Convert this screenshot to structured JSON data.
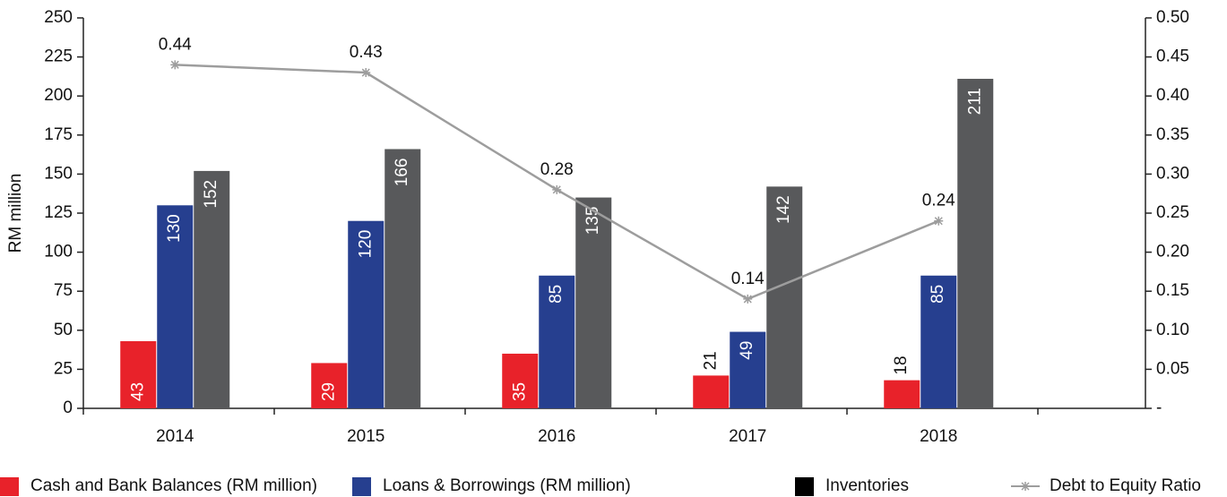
{
  "chart_data": {
    "type": "bar_line",
    "y_label": "RM million",
    "categories": [
      "2014",
      "2015",
      "2016",
      "2017",
      "2018"
    ],
    "series": [
      {
        "name": "Cash and Bank Balances (RM million)",
        "color": "#e8222a",
        "values": [
          43,
          29,
          35,
          21,
          18
        ]
      },
      {
        "name": "Loans & Borrowings (RM million)",
        "color": "#263f8f",
        "values": [
          130,
          120,
          85,
          49,
          85
        ]
      },
      {
        "name": "Inventories",
        "color": "#58595b",
        "legend_color": "#000000",
        "values": [
          152,
          166,
          135,
          142,
          211
        ]
      },
      {
        "name": "Debt to Equity Ratio",
        "color": "#9d9d9d",
        "axis": "y2",
        "values": [
          0.44,
          0.43,
          0.28,
          0.14,
          0.24
        ]
      }
    ],
    "ylim": [
      0,
      250
    ],
    "yticks": [
      0,
      25,
      50,
      75,
      100,
      125,
      150,
      175,
      200,
      225,
      250
    ],
    "y2lim": [
      0,
      0.5
    ],
    "y2ticks": [
      {
        "value": 0,
        "label": "-"
      },
      0.05,
      {
        "value": 0.1,
        "label": "0.10"
      },
      0.15,
      {
        "value": 0.2,
        "label": "0.20"
      },
      0.25,
      {
        "value": 0.3,
        "label": "0.30"
      },
      0.35,
      {
        "value": 0.4,
        "label": "0.40"
      },
      0.45,
      {
        "value": 0.5,
        "label": "0.50"
      }
    ],
    "legend": "bottom"
  }
}
